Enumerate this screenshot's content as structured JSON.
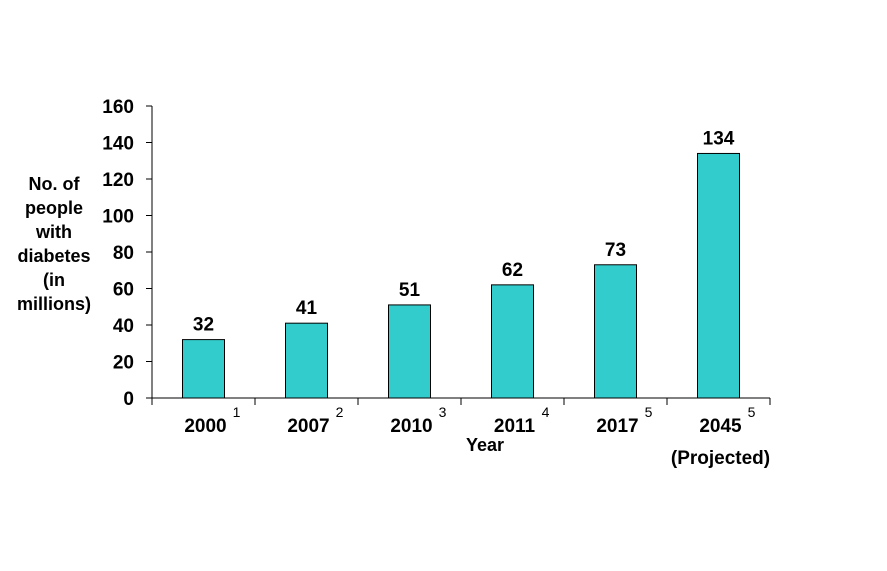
{
  "chart_data": {
    "type": "bar",
    "categories": [
      "2000",
      "2007",
      "2010",
      "2011",
      "2017",
      "2045"
    ],
    "category_superscripts": [
      "1",
      "2",
      "3",
      "4",
      "5",
      "5"
    ],
    "category_notes": [
      "",
      "",
      "",
      "",
      "",
      "(Projected)"
    ],
    "values": [
      32,
      41,
      51,
      62,
      73,
      134
    ],
    "data_labels": [
      "32",
      "41",
      "51",
      "62",
      "73",
      "134"
    ],
    "title": "",
    "xlabel": "Year",
    "ylabel_lines": [
      "No. of",
      "people",
      "with",
      "diabetes",
      "(in",
      "millions)"
    ],
    "ylim": [
      0,
      160
    ],
    "yticks": [
      0,
      20,
      40,
      60,
      80,
      100,
      120,
      140,
      160
    ],
    "bar_color": "#33CCCC",
    "grid": false,
    "legend": "none"
  }
}
